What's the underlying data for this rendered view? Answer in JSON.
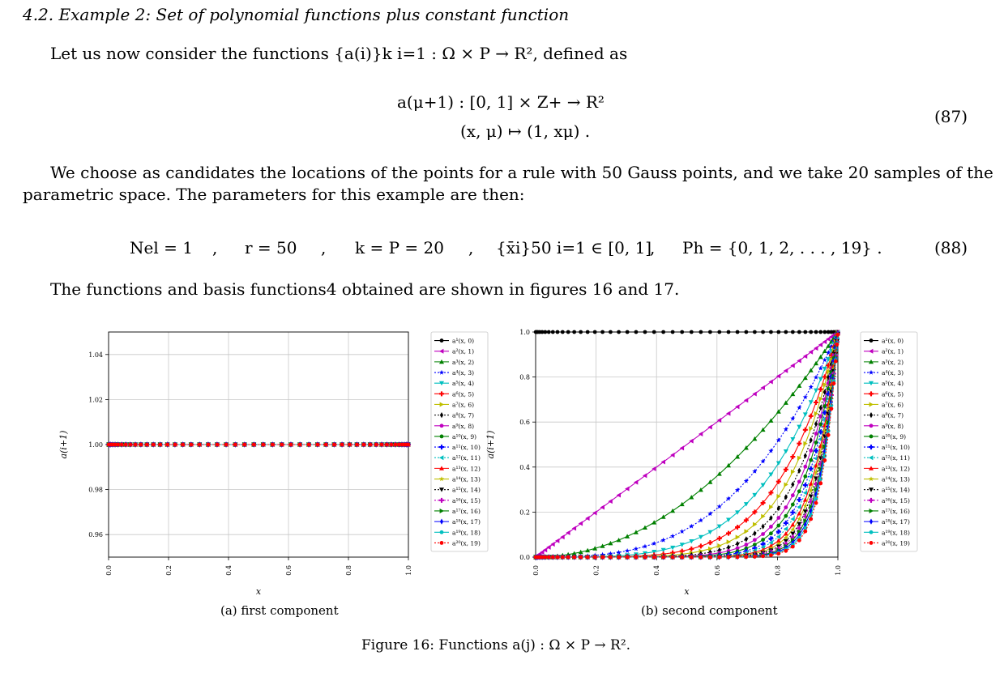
{
  "section": {
    "heading": "4.2. Example 2: Set of polynomial functions plus constant function"
  },
  "intro": {
    "text": "Let us now consider the functions {a(i)}k i=1 : Ω × P → R², defined as"
  },
  "eq87": {
    "line1": "a(μ+1) : [0, 1] × Z+ → R²",
    "line2": "(x, μ) ↦ (1, xμ) .",
    "number": "(87)"
  },
  "para2": {
    "line1": "We choose as candidates the locations of the points for a rule with 50 Gauss points, and we take 20 samples of the",
    "line2": "parametric space. The parameters for this example are then:"
  },
  "eq88": {
    "parts": [
      "Nel = 1",
      ",",
      "r = 50",
      ",",
      "k = P = 20",
      ",",
      "{x̄i}50 i=1 ∈ [0, 1]",
      ",",
      "Ph = {0, 1, 2, . . . , 19} ."
    ],
    "number": "(88)"
  },
  "para3": {
    "text": "The functions and basis functions4 obtained are shown in figures 16 and 17."
  },
  "figure": {
    "caption": "Figure 16: Functions a(j) : Ω × P → R².",
    "subcaption_a": "(a) first component",
    "subcaption_b": "(b) second component"
  },
  "legend_labels": [
    "a¹(x, 0)",
    "a²(x, 1)",
    "a³(x, 2)",
    "a⁴(x, 3)",
    "a⁵(x, 4)",
    "a⁶(x, 5)",
    "a⁷(x, 6)",
    "a⁸(x, 7)",
    "a⁹(x, 8)",
    "a¹⁰(x, 9)",
    "a¹¹(x, 10)",
    "a¹²(x, 11)",
    "a¹³(x, 12)",
    "a¹⁴(x, 13)",
    "a¹⁵(x, 14)",
    "a¹⁶(x, 15)",
    "a¹⁷(x, 16)",
    "a¹⁸(x, 17)",
    "a¹⁹(x, 18)",
    "a²⁰(x, 19)"
  ],
  "series_style": [
    {
      "color": "#000000",
      "marker": "circle",
      "dash": false
    },
    {
      "color": "#bf00bf",
      "marker": "tri-left",
      "dash": false
    },
    {
      "color": "#008000",
      "marker": "tri-up",
      "dash": false
    },
    {
      "color": "#0000ff",
      "marker": "star",
      "dash": true
    },
    {
      "color": "#00bfbf",
      "marker": "tri-down",
      "dash": false
    },
    {
      "color": "#ff0000",
      "marker": "plus",
      "dash": false
    },
    {
      "color": "#bfbf00",
      "marker": "tri-right",
      "dash": false
    },
    {
      "color": "#000000",
      "marker": "diamond",
      "dash": true
    },
    {
      "color": "#bf00bf",
      "marker": "circle",
      "dash": false
    },
    {
      "color": "#008000",
      "marker": "circle",
      "dash": false
    },
    {
      "color": "#0000ff",
      "marker": "plus",
      "dash": true
    },
    {
      "color": "#00bfbf",
      "marker": "tri-left",
      "dash": true
    },
    {
      "color": "#ff0000",
      "marker": "tri-up",
      "dash": false
    },
    {
      "color": "#bfbf00",
      "marker": "star",
      "dash": false
    },
    {
      "color": "#000000",
      "marker": "tri-down",
      "dash": true
    },
    {
      "color": "#bf00bf",
      "marker": "plus",
      "dash": true
    },
    {
      "color": "#008000",
      "marker": "tri-right",
      "dash": false
    },
    {
      "color": "#0000ff",
      "marker": "diamond",
      "dash": false
    },
    {
      "color": "#00bfbf",
      "marker": "circle",
      "dash": false
    },
    {
      "color": "#ff0000",
      "marker": "circle",
      "dash": true
    }
  ],
  "chart_data": [
    {
      "type": "scatter",
      "title": "",
      "xlabel": "x",
      "ylabel": "a(i+1)",
      "xlim": [
        0,
        1
      ],
      "ylim": [
        0.95,
        1.05
      ],
      "x_ticks": [
        "0.0",
        "0.2",
        "0.4",
        "0.6",
        "0.8",
        "1.0"
      ],
      "y_ticks": [
        "0.96",
        "0.98",
        "1.00",
        "1.02",
        "1.04"
      ],
      "grid": true,
      "legend": "right-outside",
      "function": "a(μ+1)_1(x) = 1 for μ = 0..19",
      "n_points": 50
    },
    {
      "type": "line",
      "title": "",
      "xlabel": "x",
      "ylabel": "a(i+1)",
      "xlim": [
        0,
        1
      ],
      "ylim": [
        0,
        1
      ],
      "x_ticks": [
        "0.0",
        "0.2",
        "0.4",
        "0.6",
        "0.8",
        "1.0"
      ],
      "y_ticks": [
        "0.0",
        "0.2",
        "0.4",
        "0.6",
        "0.8",
        "1.0"
      ],
      "grid": true,
      "legend": "right-outside",
      "function": "a(μ+1)_2(x) = x^μ for μ = 0..19",
      "exponents": [
        0,
        1,
        2,
        3,
        4,
        5,
        6,
        7,
        8,
        9,
        10,
        11,
        12,
        13,
        14,
        15,
        16,
        17,
        18,
        19
      ],
      "n_points": 50
    }
  ]
}
